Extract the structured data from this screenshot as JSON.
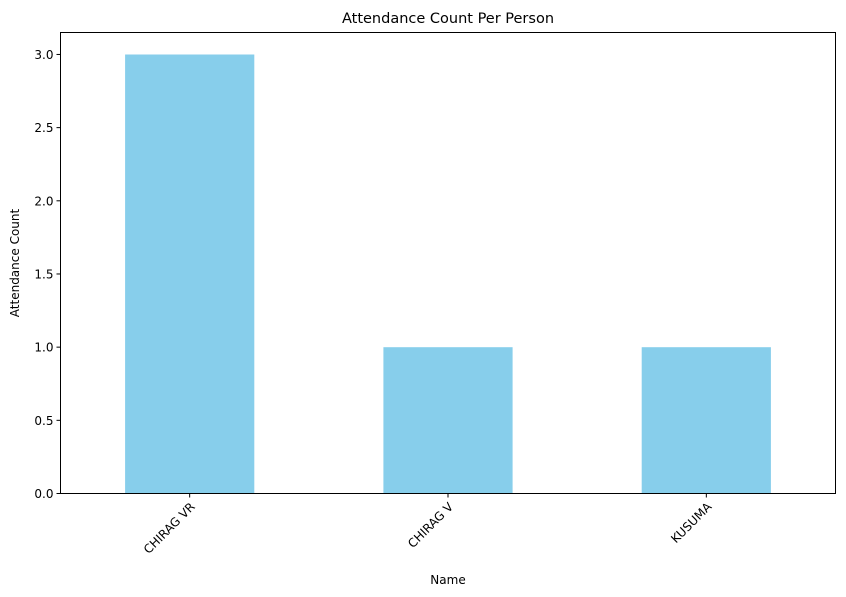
{
  "chart_data": {
    "type": "bar",
    "title": "Attendance Count Per Person",
    "xlabel": "Name",
    "ylabel": "Attendance Count",
    "categories": [
      "CHIRAG VR",
      "CHIRAG V",
      "KUSUMA"
    ],
    "values": [
      3,
      1,
      1
    ],
    "ylim": [
      0,
      3.15
    ],
    "yticks": [
      0.0,
      0.5,
      1.0,
      1.5,
      2.0,
      2.5,
      3.0
    ],
    "ytick_labels": [
      "0.0",
      "0.5",
      "1.0",
      "1.5",
      "2.0",
      "2.5",
      "3.0"
    ],
    "bar_color": "#87ceeb",
    "grid": false,
    "legend": "none",
    "xtick_rotation_deg": 45
  }
}
